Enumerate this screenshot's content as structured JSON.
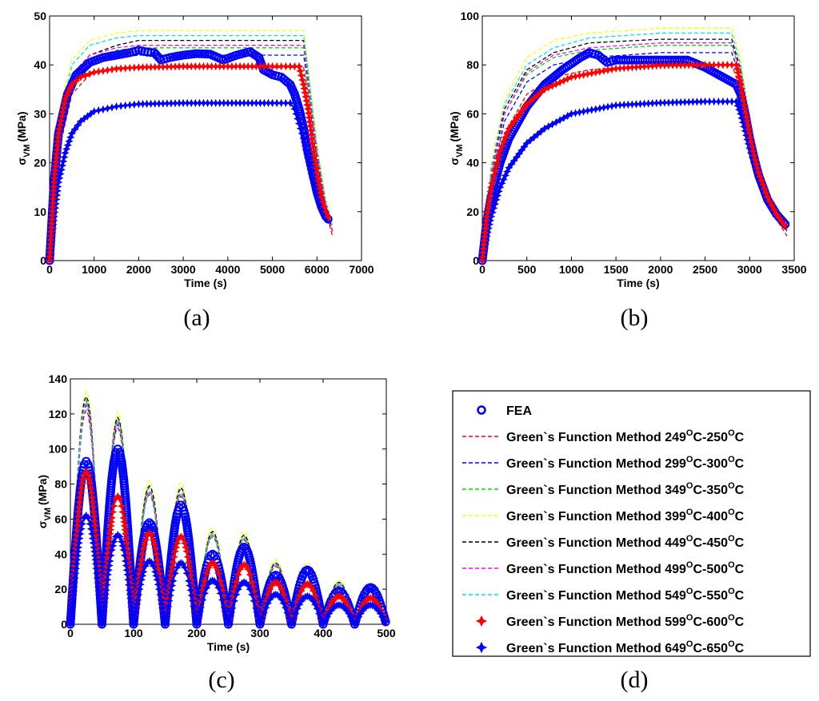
{
  "chart_data": [
    {
      "id": "a",
      "type": "line",
      "caption": "(a)",
      "xlabel": "Time (s)",
      "ylabel_main": "σ",
      "ylabel_sub": "VM",
      "ylabel_unit": "(MPa)",
      "xlim": [
        0,
        7000
      ],
      "ylim": [
        0,
        50
      ],
      "xticks": [
        0,
        1000,
        2000,
        3000,
        4000,
        5000,
        6000,
        7000
      ],
      "yticks": [
        0,
        10,
        20,
        30,
        40,
        50
      ],
      "series": [
        {
          "name": "Green`s Function Method 249°C-250°C",
          "x": [
            0,
            200,
            500,
            900,
            1500,
            5700,
            5800,
            6000,
            6200,
            6350
          ],
          "y": [
            0,
            22,
            34,
            38,
            39.5,
            39.5,
            34,
            20,
            10,
            5
          ]
        },
        {
          "name": "Green`s Function Method 299°C-300°C",
          "x": [
            0,
            200,
            500,
            900,
            1500,
            2000,
            5700,
            5800,
            6000,
            6200,
            6350
          ],
          "y": [
            0,
            25,
            36,
            40,
            41.5,
            42,
            42,
            36,
            21,
            10,
            6
          ]
        },
        {
          "name": "Green`s Function Method 349°C-350°C",
          "x": [
            0,
            200,
            500,
            900,
            1500,
            2000,
            5700,
            5800,
            6000,
            6200,
            6350
          ],
          "y": [
            0,
            26,
            37,
            41,
            43,
            43.5,
            43.5,
            37,
            22,
            11,
            6
          ]
        },
        {
          "name": "Green`s Function Method 399°C-400°C",
          "x": [
            0,
            200,
            500,
            900,
            1500,
            2000,
            5700,
            5800,
            6000,
            6200,
            6350
          ],
          "y": [
            0,
            30,
            41,
            45,
            46.5,
            47,
            47,
            40,
            24,
            12,
            7
          ]
        },
        {
          "name": "Green`s Function Method 449°C-450°C",
          "x": [
            0,
            200,
            500,
            900,
            1500,
            2000,
            5700,
            5800,
            6000,
            6200,
            6350
          ],
          "y": [
            0,
            27,
            38,
            42,
            44,
            45,
            45,
            38,
            23,
            11,
            6
          ]
        },
        {
          "name": "Green`s Function Method 499°C-500°C",
          "x": [
            0,
            200,
            500,
            900,
            1500,
            2000,
            5700,
            5800,
            6000,
            6200,
            6350
          ],
          "y": [
            0,
            27,
            38,
            42,
            43.5,
            44,
            44,
            38,
            22,
            11,
            6
          ]
        },
        {
          "name": "Green`s Function Method 549°C-550°C",
          "x": [
            0,
            200,
            500,
            900,
            1500,
            2000,
            5700,
            5800,
            6000,
            6200,
            6350
          ],
          "y": [
            0,
            28,
            40,
            44,
            45.5,
            46,
            46,
            39,
            23,
            12,
            7
          ]
        },
        {
          "name": "Green`s Function Method 599°C-600°C",
          "x": [
            0,
            100,
            200,
            350,
            500,
            700,
            1000,
            1500,
            2000,
            3000,
            4000,
            5000,
            5600,
            5700,
            5800,
            5900,
            6000,
            6100,
            6200,
            6300
          ],
          "y": [
            0,
            16,
            26,
            33,
            36,
            37.5,
            38.5,
            39.2,
            39.5,
            39.7,
            39.7,
            39.7,
            39.7,
            36,
            31,
            24,
            18,
            13,
            10,
            8
          ]
        },
        {
          "name": "Green`s Function Method 649°C-650°C",
          "x": [
            0,
            100,
            200,
            350,
            500,
            700,
            1000,
            1500,
            2000,
            3000,
            4000,
            5000,
            5400,
            5500,
            5600,
            5700,
            5800,
            5900,
            6000,
            6100,
            6200,
            6300
          ],
          "y": [
            0,
            9,
            16,
            22,
            26,
            28.5,
            30.5,
            31.5,
            32,
            32.2,
            32.2,
            32.2,
            32.2,
            31,
            28,
            25,
            21,
            17,
            14,
            11,
            9,
            7.5
          ]
        },
        {
          "name": "FEA",
          "x": [
            0,
            100,
            200,
            400,
            600,
            900,
            1200,
            1500,
            1800,
            2000,
            2200,
            2350,
            2500,
            2700,
            3000,
            3300,
            3600,
            3900,
            4200,
            4500,
            4700,
            4800,
            5000,
            5200,
            5400,
            5500,
            5600,
            5700,
            5800,
            5900,
            6000,
            6100,
            6200,
            6300
          ],
          "y": [
            0,
            16,
            26,
            34,
            38,
            40.5,
            41.5,
            42,
            42.5,
            43,
            42.6,
            42.5,
            41,
            41.5,
            42,
            42.3,
            42.2,
            41,
            42,
            42.7,
            41.5,
            39,
            38,
            37.5,
            36,
            34,
            31,
            27,
            22,
            18,
            14,
            11,
            9,
            8
          ]
        }
      ]
    },
    {
      "id": "b",
      "type": "line",
      "caption": "(b)",
      "xlabel": "Time (s)",
      "ylabel_main": "σ",
      "ylabel_sub": "VM",
      "ylabel_unit": "(MPa)",
      "xlim": [
        0,
        3500
      ],
      "ylim": [
        0,
        100
      ],
      "xticks": [
        0,
        500,
        1000,
        1500,
        2000,
        2500,
        3000,
        3500
      ],
      "yticks": [
        0,
        20,
        40,
        60,
        80,
        100
      ],
      "series": [
        {
          "name": "Green`s Function Method 249°C-250°C",
          "x": [
            0,
            100,
            250,
            500,
            800,
            1200,
            2000,
            2800,
            2900,
            3000,
            3100,
            3200,
            3300,
            3420
          ],
          "y": [
            0,
            30,
            52,
            68,
            75,
            78,
            80,
            80,
            70,
            50,
            35,
            25,
            17,
            10
          ]
        },
        {
          "name": "Green`s Function Method 299°C-300°C",
          "x": [
            0,
            100,
            250,
            500,
            800,
            1200,
            2000,
            2800,
            2900,
            3000,
            3100,
            3200,
            3300,
            3420
          ],
          "y": [
            0,
            33,
            57,
            73,
            80,
            83,
            85,
            85,
            74,
            52,
            36,
            26,
            18,
            12
          ]
        },
        {
          "name": "Green`s Function Method 349°C-350°C",
          "x": [
            0,
            100,
            250,
            500,
            800,
            1200,
            2000,
            2800,
            2900,
            3000,
            3100,
            3200,
            3300,
            3420
          ],
          "y": [
            0,
            35,
            60,
            76,
            83,
            86,
            88,
            88,
            76,
            54,
            37,
            27,
            19,
            13
          ]
        },
        {
          "name": "Green`s Function Method 399°C-400°C",
          "x": [
            0,
            100,
            250,
            500,
            800,
            1200,
            2000,
            2800,
            2900,
            3000,
            3100,
            3200,
            3300,
            3420
          ],
          "y": [
            0,
            40,
            66,
            83,
            90,
            93,
            95,
            95,
            82,
            57,
            39,
            28,
            20,
            14
          ]
        },
        {
          "name": "Green`s Function Method 449°C-450°C",
          "x": [
            0,
            100,
            250,
            500,
            800,
            1200,
            2000,
            2800,
            2900,
            3000,
            3100,
            3200,
            3300,
            3420
          ],
          "y": [
            0,
            37,
            62,
            78,
            85,
            89,
            90.5,
            90.5,
            78,
            55,
            38,
            27,
            19,
            13
          ]
        },
        {
          "name": "Green`s Function Method 499°C-500°C",
          "x": [
            0,
            100,
            250,
            500,
            800,
            1200,
            2000,
            2800,
            2900,
            3000,
            3100,
            3200,
            3300,
            3420
          ],
          "y": [
            0,
            36,
            60,
            77,
            84,
            87,
            89,
            89,
            77,
            54,
            37,
            27,
            19,
            13
          ]
        },
        {
          "name": "Green`s Function Method 549°C-550°C",
          "x": [
            0,
            100,
            250,
            500,
            800,
            1200,
            2000,
            2800,
            2900,
            3000,
            3100,
            3200,
            3300,
            3420
          ],
          "y": [
            0,
            38,
            64,
            80,
            87,
            91,
            93,
            93,
            80,
            56,
            38,
            28,
            20,
            14
          ]
        },
        {
          "name": "Green`s Function Method 599°C-600°C",
          "x": [
            0,
            50,
            100,
            200,
            300,
            500,
            700,
            1000,
            1500,
            2000,
            2500,
            2850,
            2900,
            2950,
            3000,
            3050,
            3100,
            3200,
            3300,
            3420
          ],
          "y": [
            0,
            18,
            30,
            45,
            54,
            64,
            70,
            75,
            78.5,
            79.8,
            80,
            80,
            72,
            62,
            52,
            43,
            36,
            26,
            19,
            13
          ]
        },
        {
          "name": "Green`s Function Method 649°C-650°C",
          "x": [
            0,
            50,
            100,
            200,
            300,
            500,
            700,
            1000,
            1500,
            2000,
            2500,
            2850,
            2900,
            2950,
            3000,
            3050,
            3100,
            3200,
            3300,
            3420
          ],
          "y": [
            0,
            10,
            18,
            30,
            38,
            48,
            54,
            60,
            63.5,
            64.5,
            65,
            65,
            60,
            53,
            46,
            40,
            34,
            25,
            18,
            13
          ]
        },
        {
          "name": "FEA",
          "x": [
            0,
            50,
            100,
            200,
            300,
            500,
            700,
            900,
            1100,
            1200,
            1300,
            1400,
            1500,
            1800,
            2100,
            2300,
            2500,
            2700,
            2850,
            2900,
            2950,
            3000,
            3050,
            3100,
            3200,
            3300,
            3420
          ],
          "y": [
            0,
            16,
            26,
            40,
            50,
            63,
            72,
            78,
            83,
            85,
            84,
            81,
            82,
            82,
            82,
            82,
            79,
            75,
            72,
            68,
            60,
            50,
            42,
            35,
            25,
            19,
            14
          ]
        }
      ]
    },
    {
      "id": "c",
      "type": "line",
      "caption": "(c)",
      "xlabel": "Time (s)",
      "ylabel_main": "σ",
      "ylabel_sub": "VM",
      "ylabel_unit": "(MPa)",
      "xlim": [
        0,
        500
      ],
      "ylim": [
        0,
        140
      ],
      "xticks": [
        0,
        100,
        200,
        300,
        400,
        500
      ],
      "yticks": [
        0,
        20,
        40,
        60,
        80,
        100,
        120,
        140
      ],
      "period": 50,
      "cycles": 10,
      "peaks": {
        "Green`s Function Method 249°C-250°C": [
          122,
          112,
          74,
          73,
          50,
          48,
          33,
          31,
          22,
          21
        ],
        "Green`s Function Method 299°C-300°C": [
          125,
          114,
          75,
          74,
          51,
          49,
          34,
          32,
          23,
          22
        ],
        "Green`s Function Method 349°C-350°C": [
          128,
          117,
          78,
          77,
          52,
          50,
          35,
          33,
          24,
          23
        ],
        "Green`s Function Method 399°C-400°C": [
          133,
          121,
          82,
          81,
          55,
          53,
          37,
          35,
          25,
          24
        ],
        "Green`s Function Method 449°C-450°C": [
          130,
          118,
          79,
          78,
          53,
          51,
          35,
          33,
          24,
          23
        ],
        "Green`s Function Method 499°C-500°C": [
          127,
          116,
          76,
          75,
          51,
          49,
          34,
          32,
          23,
          22
        ],
        "Green`s Function Method 549°C-550°C": [
          126,
          115,
          75,
          74,
          51,
          49,
          34,
          32,
          23,
          22
        ],
        "Green`s Function Method 599°C-600°C": [
          87,
          73,
          52,
          50,
          35,
          34,
          24,
          23,
          16,
          15
        ],
        "Green`s Function Method 649°C-650°C": [
          62,
          51,
          36,
          35,
          25,
          24,
          17,
          16,
          11,
          11
        ],
        "FEA": [
          93,
          100,
          58,
          68,
          40,
          44,
          28,
          31,
          19,
          21
        ]
      }
    }
  ],
  "legend": {
    "entries": [
      {
        "label": "FEA",
        "main": "FEA",
        "sup1": "",
        "mid": "",
        "sup2": "",
        "end": "",
        "color": "#0000ff",
        "style": "circle"
      },
      {
        "label": "Green`s Function Method 249°C-250°C",
        "main": "Green`s Function Method 249",
        "sup1": "O",
        "mid": "C-250",
        "sup2": "O",
        "end": "C",
        "color": "#ff0000",
        "style": "dashed"
      },
      {
        "label": "Green`s Function Method 299°C-300°C",
        "main": "Green`s Function Method 299",
        "sup1": "O",
        "mid": "C-300",
        "sup2": "O",
        "end": "C",
        "color": "#0000ff",
        "style": "dashed"
      },
      {
        "label": "Green`s Function Method 349°C-350°C",
        "main": "Green`s Function Method 349",
        "sup1": "O",
        "mid": "C-350",
        "sup2": "O",
        "end": "C",
        "color": "#00dd00",
        "style": "dashed"
      },
      {
        "label": "Green`s Function Method 399°C-400°C",
        "main": "Green`s Function Method 399",
        "sup1": "O",
        "mid": "C-400",
        "sup2": "O",
        "end": "C",
        "color": "#ffff00",
        "style": "dashed"
      },
      {
        "label": "Green`s Function Method 449°C-450°C",
        "main": "Green`s Function Method 449",
        "sup1": "O",
        "mid": "C-450",
        "sup2": "O",
        "end": "C",
        "color": "#000000",
        "style": "dashed"
      },
      {
        "label": "Green`s Function Method 499°C-500°C",
        "main": "Green`s Function Method 499",
        "sup1": "O",
        "mid": "C-500",
        "sup2": "O",
        "end": "C",
        "color": "#ff00ff",
        "style": "dashed"
      },
      {
        "label": "Green`s Function Method 549°C-550°C",
        "main": "Green`s Function Method 549",
        "sup1": "O",
        "mid": "C-550",
        "sup2": "O",
        "end": "C",
        "color": "#00e5ee",
        "style": "dashed"
      },
      {
        "label": "Green`s Function Method 599°C-600°C",
        "main": "Green`s Function Method 599",
        "sup1": "O",
        "mid": "C-600",
        "sup2": "O",
        "end": "C",
        "color": "#ff0000",
        "style": "star"
      },
      {
        "label": "Green`s Function Method 649°C-650°C",
        "main": "Green`s Function Method 649",
        "sup1": "O",
        "mid": "C-650",
        "sup2": "O",
        "end": "C",
        "color": "#0000ff",
        "style": "star"
      }
    ],
    "caption": "(d)"
  }
}
